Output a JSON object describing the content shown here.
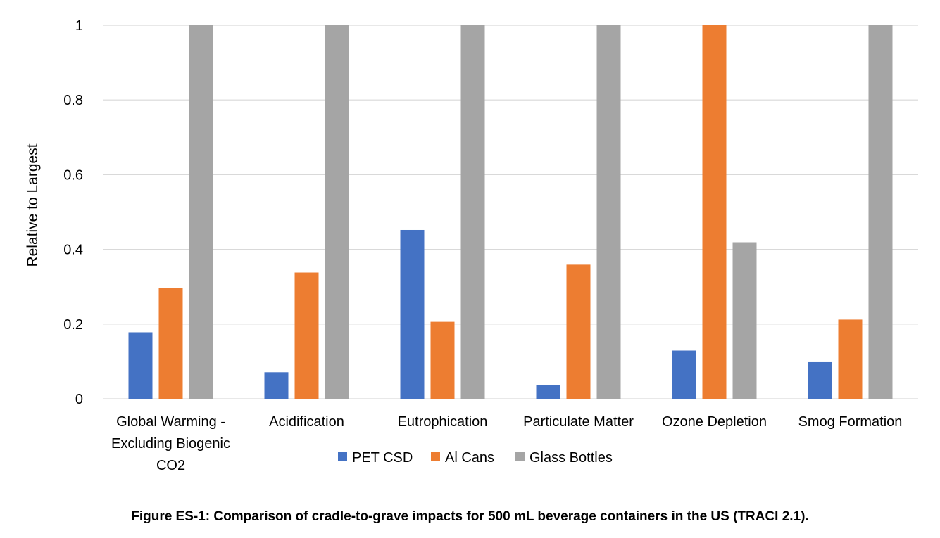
{
  "chart_data": {
    "type": "bar",
    "ylabel": "Relative to Largest",
    "xlabel": "",
    "ylim": [
      0,
      1
    ],
    "yticks": [
      "0",
      "0.2",
      "0.4",
      "0.6",
      "0.8",
      "1"
    ],
    "ytick_values": [
      0,
      0.2,
      0.4,
      0.6,
      0.8,
      1
    ],
    "categories": [
      [
        "Global Warming -",
        "Excluding Biogenic",
        "CO2"
      ],
      [
        "Acidification"
      ],
      [
        "Eutrophication"
      ],
      [
        "Particulate Matter"
      ],
      [
        "Ozone Depletion"
      ],
      [
        "Smog Formation"
      ]
    ],
    "series": [
      {
        "name": "PET CSD",
        "color": "#4472c4",
        "values": [
          0.178,
          0.071,
          0.452,
          0.037,
          0.129,
          0.098
        ]
      },
      {
        "name": "Al Cans",
        "color": "#ed7d31",
        "values": [
          0.296,
          0.338,
          0.206,
          0.359,
          1.0,
          0.212
        ]
      },
      {
        "name": "Glass Bottles",
        "color": "#a5a5a5",
        "values": [
          1.0,
          1.0,
          1.0,
          1.0,
          0.419,
          1.0
        ]
      }
    ],
    "grid": true,
    "legend_position": "bottom"
  },
  "caption": "Figure ES-1: Comparison of cradle-to-grave impacts for 500 mL beverage containers in the US (TRACI 2.1)."
}
